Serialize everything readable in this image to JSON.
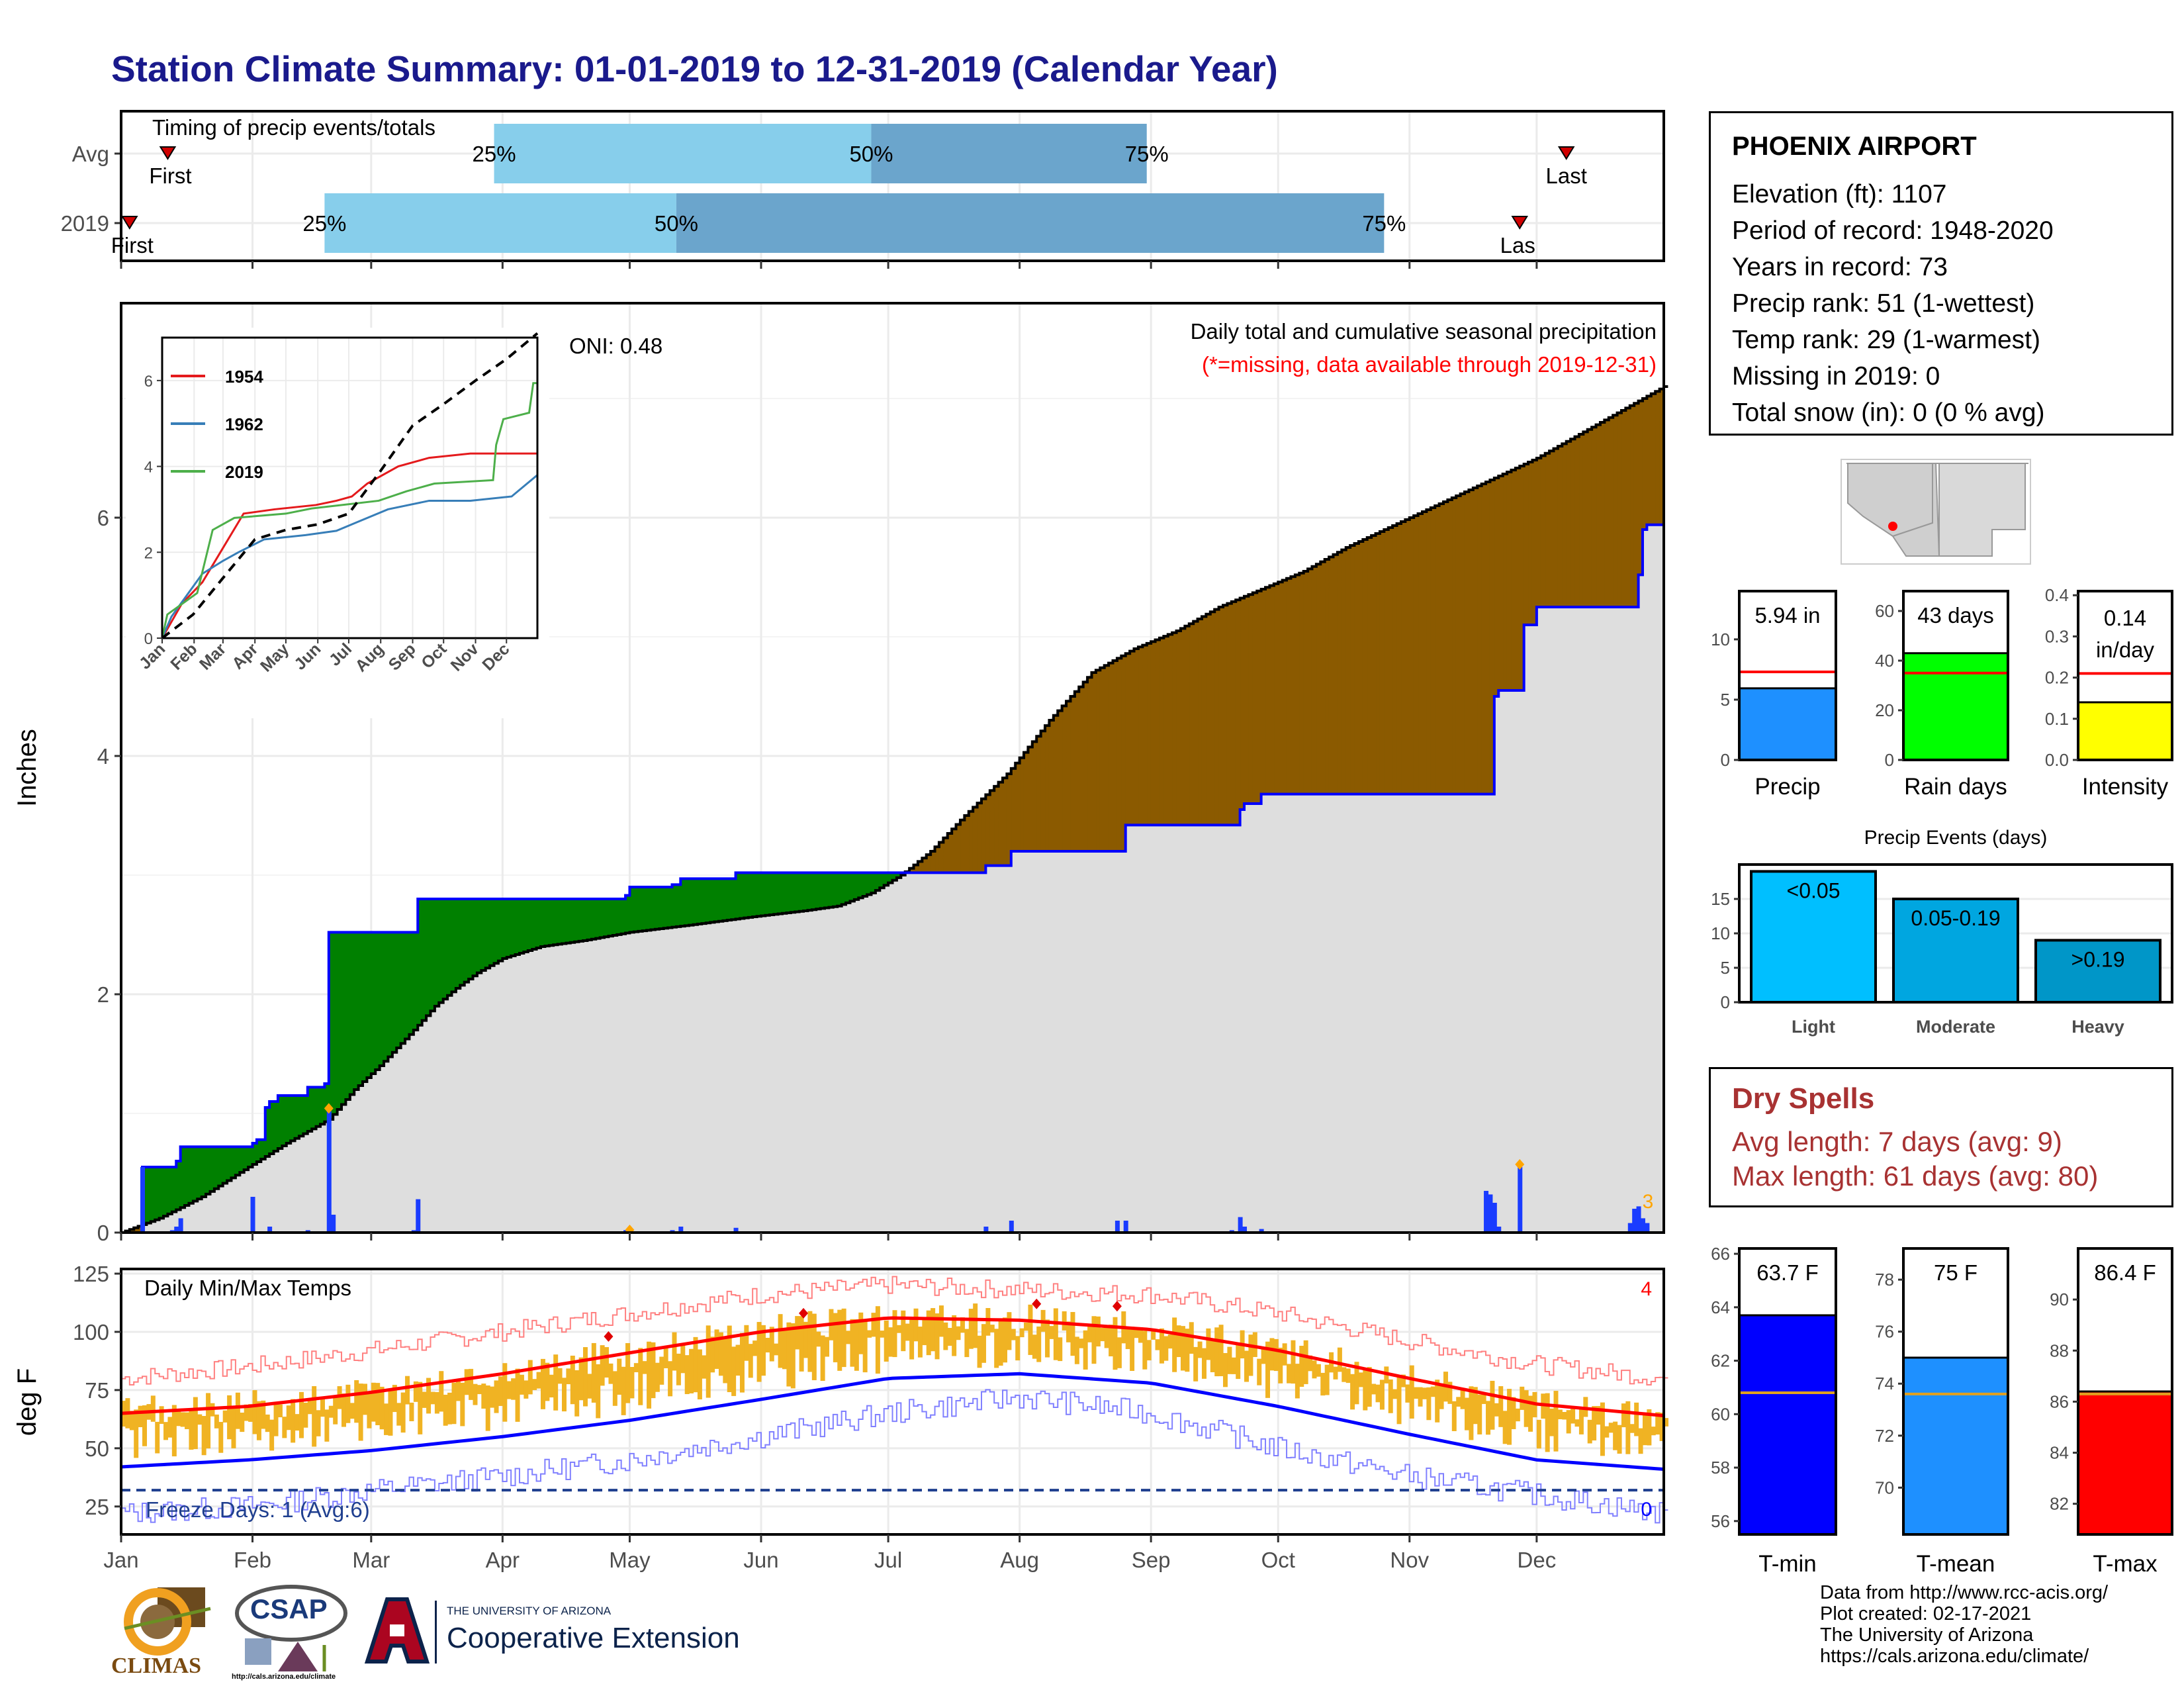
{
  "title": "Station Climate Summary: 01-01-2019 to 12-31-2019 (Calendar Year)",
  "station": {
    "name": "PHOENIX AIRPORT",
    "lines": [
      "Elevation (ft): 1107",
      "Period of record: 1948-2020",
      "Years in record: 73",
      "Precip rank: 51 (1-wettest)",
      "Temp rank: 29 (1-warmest)",
      "Missing in 2019: 0",
      "Total snow (in): 0 (0 % avg)"
    ]
  },
  "dry_spells": {
    "title": "Dry Spells",
    "avg": "Avg length: 7 days (avg: 9)",
    "max": "Max length: 61 days (avg: 80)"
  },
  "footer": [
    "Data from http://www.rcc-acis.org/",
    "Plot created: 02-17-2021",
    "The University of Arizona",
    "https://cals.arizona.edu/climate/"
  ],
  "logos": {
    "climas": "CLIMAS",
    "csap": "CSAP",
    "csap_url": "http://cals.arizona.edu/climate",
    "ua_small": "THE UNIVERSITY OF ARIZONA",
    "ua_big": "Cooperative Extension"
  },
  "colors": {
    "light_blue": "#87ceeb",
    "mid_blue": "#6ba5cc",
    "green": "#008000",
    "brown": "#8b5a00",
    "precip_blue": "#1e90ff",
    "tmin_blue": "#0000ff",
    "tmax_red": "#ff0000",
    "temp_gold": "#f0b323"
  },
  "chart_data": [
    {
      "type": "bar",
      "name": "timing",
      "title": "Timing of precip events/totals",
      "rows": [
        {
          "label": "Avg",
          "first_doy": 12,
          "p25_doy": 89,
          "p50_doy": 178,
          "p75_doy": 243,
          "last_doy": 342
        },
        {
          "label": "2019",
          "first_doy": 3,
          "p25_doy": 49,
          "p50_doy": 132,
          "p75_doy": 299,
          "last_doy": 331
        }
      ],
      "labels": {
        "first": "First",
        "last": "Last",
        "last_clipped": "Las",
        "p25": "25%",
        "p50": "50%",
        "p75": "75%"
      }
    },
    {
      "type": "area",
      "name": "cumulative_precip",
      "title": "Daily total and cumulative seasonal precipitation",
      "subtitle": "(*=missing, data available through 2019-12-31)",
      "annotation": "ONI: 0.48",
      "ylabel": "Inches",
      "ylim": [
        0,
        7.8
      ],
      "yticks": [
        0,
        2,
        4,
        6
      ],
      "xlim_doy": [
        1,
        365
      ],
      "month_labels": [
        "Jan",
        "Feb",
        "Mar",
        "Apr",
        "May",
        "Jun",
        "Jul",
        "Aug",
        "Sep",
        "Oct",
        "Nov",
        "Dec"
      ],
      "month_doy": [
        1,
        32,
        60,
        91,
        121,
        152,
        182,
        213,
        244,
        274,
        305,
        335
      ],
      "avg_cumulative": [
        [
          1,
          0
        ],
        [
          10,
          0.12
        ],
        [
          20,
          0.3
        ],
        [
          31,
          0.55
        ],
        [
          40,
          0.75
        ],
        [
          50,
          0.95
        ],
        [
          56,
          1.2
        ],
        [
          62,
          1.4
        ],
        [
          70,
          1.7
        ],
        [
          75,
          1.9
        ],
        [
          80,
          2.05
        ],
        [
          85,
          2.18
        ],
        [
          91,
          2.3
        ],
        [
          100,
          2.4
        ],
        [
          110,
          2.45
        ],
        [
          121,
          2.52
        ],
        [
          135,
          2.58
        ],
        [
          150,
          2.65
        ],
        [
          162,
          2.7
        ],
        [
          170,
          2.74
        ],
        [
          178,
          2.85
        ],
        [
          185,
          3.0
        ],
        [
          192,
          3.2
        ],
        [
          200,
          3.5
        ],
        [
          210,
          3.85
        ],
        [
          220,
          4.3
        ],
        [
          230,
          4.7
        ],
        [
          240,
          4.9
        ],
        [
          250,
          5.05
        ],
        [
          260,
          5.25
        ],
        [
          270,
          5.4
        ],
        [
          280,
          5.55
        ],
        [
          290,
          5.75
        ],
        [
          305,
          6.0
        ],
        [
          320,
          6.25
        ],
        [
          335,
          6.5
        ],
        [
          350,
          6.8
        ],
        [
          365,
          7.1
        ]
      ],
      "cum_2019": [
        [
          1,
          0
        ],
        [
          5,
          0
        ],
        [
          6,
          0.55
        ],
        [
          14,
          0.6
        ],
        [
          15,
          0.72
        ],
        [
          32,
          0.75
        ],
        [
          33,
          0.78
        ],
        [
          35,
          1.05
        ],
        [
          36,
          1.1
        ],
        [
          38,
          1.15
        ],
        [
          45,
          1.22
        ],
        [
          49,
          1.25
        ],
        [
          50,
          2.52
        ],
        [
          70,
          2.52
        ],
        [
          71,
          2.8
        ],
        [
          100,
          2.8
        ],
        [
          120,
          2.83
        ],
        [
          121,
          2.9
        ],
        [
          131,
          2.92
        ],
        [
          133,
          2.97
        ],
        [
          145,
          2.97
        ],
        [
          146,
          3.02
        ],
        [
          195,
          3.02
        ],
        [
          196,
          3.02
        ],
        [
          205,
          3.08
        ],
        [
          211,
          3.2
        ],
        [
          236,
          3.2
        ],
        [
          238,
          3.42
        ],
        [
          262,
          3.42
        ],
        [
          265,
          3.55
        ],
        [
          266,
          3.6
        ],
        [
          270,
          3.68
        ],
        [
          322,
          3.68
        ],
        [
          325,
          4.5
        ],
        [
          326,
          4.55
        ],
        [
          330,
          4.55
        ],
        [
          332,
          5.1
        ],
        [
          335,
          5.25
        ],
        [
          357,
          5.25
        ],
        [
          359,
          5.52
        ],
        [
          360,
          5.9
        ],
        [
          361,
          5.94
        ],
        [
          365,
          5.94
        ]
      ],
      "daily_2019": [
        [
          6,
          0.55
        ],
        [
          13,
          0.02
        ],
        [
          14,
          0.05
        ],
        [
          15,
          0.12
        ],
        [
          32,
          0.3
        ],
        [
          36,
          0.05
        ],
        [
          45,
          0.02
        ],
        [
          50,
          1.02
        ],
        [
          51,
          0.15
        ],
        [
          70,
          0.02
        ],
        [
          71,
          0.28
        ],
        [
          120,
          0.02
        ],
        [
          130,
          0.01
        ],
        [
          131,
          0.02
        ],
        [
          133,
          0.05
        ],
        [
          146,
          0.04
        ],
        [
          205,
          0.05
        ],
        [
          211,
          0.1
        ],
        [
          236,
          0.1
        ],
        [
          238,
          0.1
        ],
        [
          263,
          0.02
        ],
        [
          265,
          0.13
        ],
        [
          266,
          0.05
        ],
        [
          270,
          0.03
        ],
        [
          323,
          0.35
        ],
        [
          324,
          0.32
        ],
        [
          325,
          0.25
        ],
        [
          326,
          0.05
        ],
        [
          331,
          0.55
        ],
        [
          357,
          0.08
        ],
        [
          358,
          0.2
        ],
        [
          359,
          0.22
        ],
        [
          360,
          0.12
        ],
        [
          361,
          0.08
        ]
      ],
      "marker_label": "3",
      "series": [
        {
          "name": "1954"
        },
        {
          "name": "1962"
        },
        {
          "name": "2019"
        }
      ]
    },
    {
      "type": "line",
      "name": "inset_analog_years",
      "ylim": [
        0,
        7
      ],
      "yticks": [
        0,
        2,
        4,
        6
      ],
      "month_labels": [
        "Jan",
        "Feb",
        "Mar",
        "Apr",
        "May",
        "Jun",
        "Jul",
        "Aug",
        "Sep",
        "Oct",
        "Nov",
        "Dec"
      ],
      "series": [
        {
          "name": "1954",
          "values": [
            [
              1,
              0
            ],
            [
              20,
              0.8
            ],
            [
              40,
              1.3
            ],
            [
              60,
              2.1
            ],
            [
              80,
              2.9
            ],
            [
              110,
              3.0
            ],
            [
              150,
              3.1
            ],
            [
              170,
              3.2
            ],
            [
              185,
              3.3
            ],
            [
              200,
              3.6
            ],
            [
              230,
              4.0
            ],
            [
              260,
              4.2
            ],
            [
              300,
              4.3
            ],
            [
              330,
              4.3
            ],
            [
              365,
              4.3
            ]
          ]
        },
        {
          "name": "1962",
          "values": [
            [
              1,
              0
            ],
            [
              10,
              0.5
            ],
            [
              25,
              1.0
            ],
            [
              40,
              1.5
            ],
            [
              60,
              1.8
            ],
            [
              75,
              2.0
            ],
            [
              100,
              2.3
            ],
            [
              140,
              2.4
            ],
            [
              170,
              2.5
            ],
            [
              190,
              2.7
            ],
            [
              220,
              3.0
            ],
            [
              260,
              3.2
            ],
            [
              300,
              3.2
            ],
            [
              340,
              3.3
            ],
            [
              365,
              3.8
            ]
          ]
        },
        {
          "name": "2019",
          "values": [
            [
              1,
              0
            ],
            [
              6,
              0.55
            ],
            [
              35,
              1.05
            ],
            [
              50,
              2.52
            ],
            [
              71,
              2.8
            ],
            [
              121,
              2.9
            ],
            [
              146,
              3.02
            ],
            [
              211,
              3.2
            ],
            [
              238,
              3.42
            ],
            [
              265,
              3.6
            ],
            [
              322,
              3.68
            ],
            [
              325,
              4.5
            ],
            [
              332,
              5.1
            ],
            [
              357,
              5.25
            ],
            [
              361,
              5.94
            ],
            [
              365,
              5.94
            ]
          ]
        },
        {
          "name": "avg",
          "values": [
            [
              1,
              0
            ],
            [
              31,
              0.55
            ],
            [
              60,
              1.4
            ],
            [
              91,
              2.3
            ],
            [
              121,
              2.52
            ],
            [
              152,
              2.65
            ],
            [
              182,
              2.9
            ],
            [
              213,
              3.9
            ],
            [
              244,
              4.95
            ],
            [
              274,
              5.45
            ],
            [
              305,
              6.0
            ],
            [
              335,
              6.5
            ],
            [
              365,
              7.1
            ]
          ]
        }
      ]
    },
    {
      "type": "line",
      "name": "daily_temps",
      "title": "Daily Min/Max Temps",
      "ylabel": "deg F",
      "ylim": [
        13,
        127
      ],
      "yticks": [
        25,
        50,
        75,
        100,
        125
      ],
      "freeze_line": 32,
      "freeze_label": "Freeze Days: 1 (Avg:6)",
      "record_high_count": "4",
      "record_low_count": "0",
      "normal_max": [
        [
          1,
          65
        ],
        [
          31,
          68
        ],
        [
          60,
          74
        ],
        [
          91,
          82
        ],
        [
          121,
          91
        ],
        [
          152,
          100
        ],
        [
          182,
          106
        ],
        [
          213,
          105
        ],
        [
          244,
          101
        ],
        [
          274,
          92
        ],
        [
          305,
          80
        ],
        [
          335,
          69
        ],
        [
          365,
          64
        ]
      ],
      "normal_min": [
        [
          1,
          42
        ],
        [
          31,
          45
        ],
        [
          60,
          49
        ],
        [
          91,
          55
        ],
        [
          121,
          62
        ],
        [
          152,
          71
        ],
        [
          182,
          80
        ],
        [
          213,
          82
        ],
        [
          244,
          78
        ],
        [
          274,
          68
        ],
        [
          305,
          56
        ],
        [
          335,
          45
        ],
        [
          365,
          41
        ]
      ],
      "record_max": [
        [
          1,
          80
        ],
        [
          31,
          85
        ],
        [
          60,
          92
        ],
        [
          91,
          100
        ],
        [
          121,
          108
        ],
        [
          152,
          116
        ],
        [
          182,
          120
        ],
        [
          213,
          118
        ],
        [
          244,
          116
        ],
        [
          274,
          108
        ],
        [
          305,
          96
        ],
        [
          335,
          86
        ],
        [
          365,
          80
        ]
      ],
      "record_min": [
        [
          1,
          22
        ],
        [
          31,
          25
        ],
        [
          60,
          32
        ],
        [
          91,
          38
        ],
        [
          121,
          45
        ],
        [
          152,
          55
        ],
        [
          182,
          65
        ],
        [
          213,
          72
        ],
        [
          244,
          65
        ],
        [
          274,
          50
        ],
        [
          305,
          38
        ],
        [
          335,
          30
        ],
        [
          365,
          22
        ]
      ],
      "record_high_days": [
        [
          116,
          98
        ],
        [
          162,
          108
        ],
        [
          217,
          112
        ],
        [
          236,
          111
        ]
      ]
    },
    {
      "type": "bar",
      "name": "precip_stats",
      "panels": [
        {
          "label": "Precip",
          "value": 5.94,
          "avg": 7.3,
          "text": "5.94 in",
          "ylim": [
            0,
            14
          ],
          "yticks": [
            0,
            5,
            10
          ],
          "color": "#1e90ff"
        },
        {
          "label": "Rain days",
          "value": 43,
          "avg": 35,
          "text": "43 days",
          "ylim": [
            0,
            68
          ],
          "yticks": [
            0,
            20,
            40,
            60
          ],
          "color": "#00ff00"
        },
        {
          "label": "Intensity",
          "value": 0.14,
          "avg": 0.21,
          "text": "0.14",
          "text2": "in/day",
          "ylim": [
            0,
            0.41
          ],
          "yticks": [
            0.0,
            0.1,
            0.2,
            0.3,
            0.4
          ],
          "color": "#ffff00"
        }
      ]
    },
    {
      "type": "bar",
      "name": "precip_events",
      "title": "Precip Events (days)",
      "categories": [
        "Light",
        "Moderate",
        "Heavy"
      ],
      "values": [
        19,
        15,
        9
      ],
      "bar_labels": [
        "<0.05",
        "0.05-0.19",
        ">0.19"
      ],
      "ylim": [
        0,
        20
      ],
      "yticks": [
        0,
        5,
        10,
        15
      ]
    },
    {
      "type": "bar",
      "name": "temp_stats",
      "panels": [
        {
          "label": "T-min",
          "value": 63.7,
          "avg": 60.8,
          "text": "63.7 F",
          "ylim": [
            55.5,
            66.2
          ],
          "yticks": [
            56,
            58,
            60,
            62,
            64,
            66
          ],
          "color": "#0000ff"
        },
        {
          "label": "T-mean",
          "value": 75,
          "avg": 73.6,
          "text": "75 F",
          "ylim": [
            68.2,
            79.2
          ],
          "yticks": [
            70,
            72,
            74,
            76,
            78
          ],
          "color": "#1e90ff"
        },
        {
          "label": "T-max",
          "value": 86.4,
          "avg": 86.3,
          "text": "86.4 F",
          "ylim": [
            80.8,
            92
          ],
          "yticks": [
            82,
            84,
            86,
            88,
            90
          ],
          "color": "#ff0000"
        }
      ]
    }
  ]
}
